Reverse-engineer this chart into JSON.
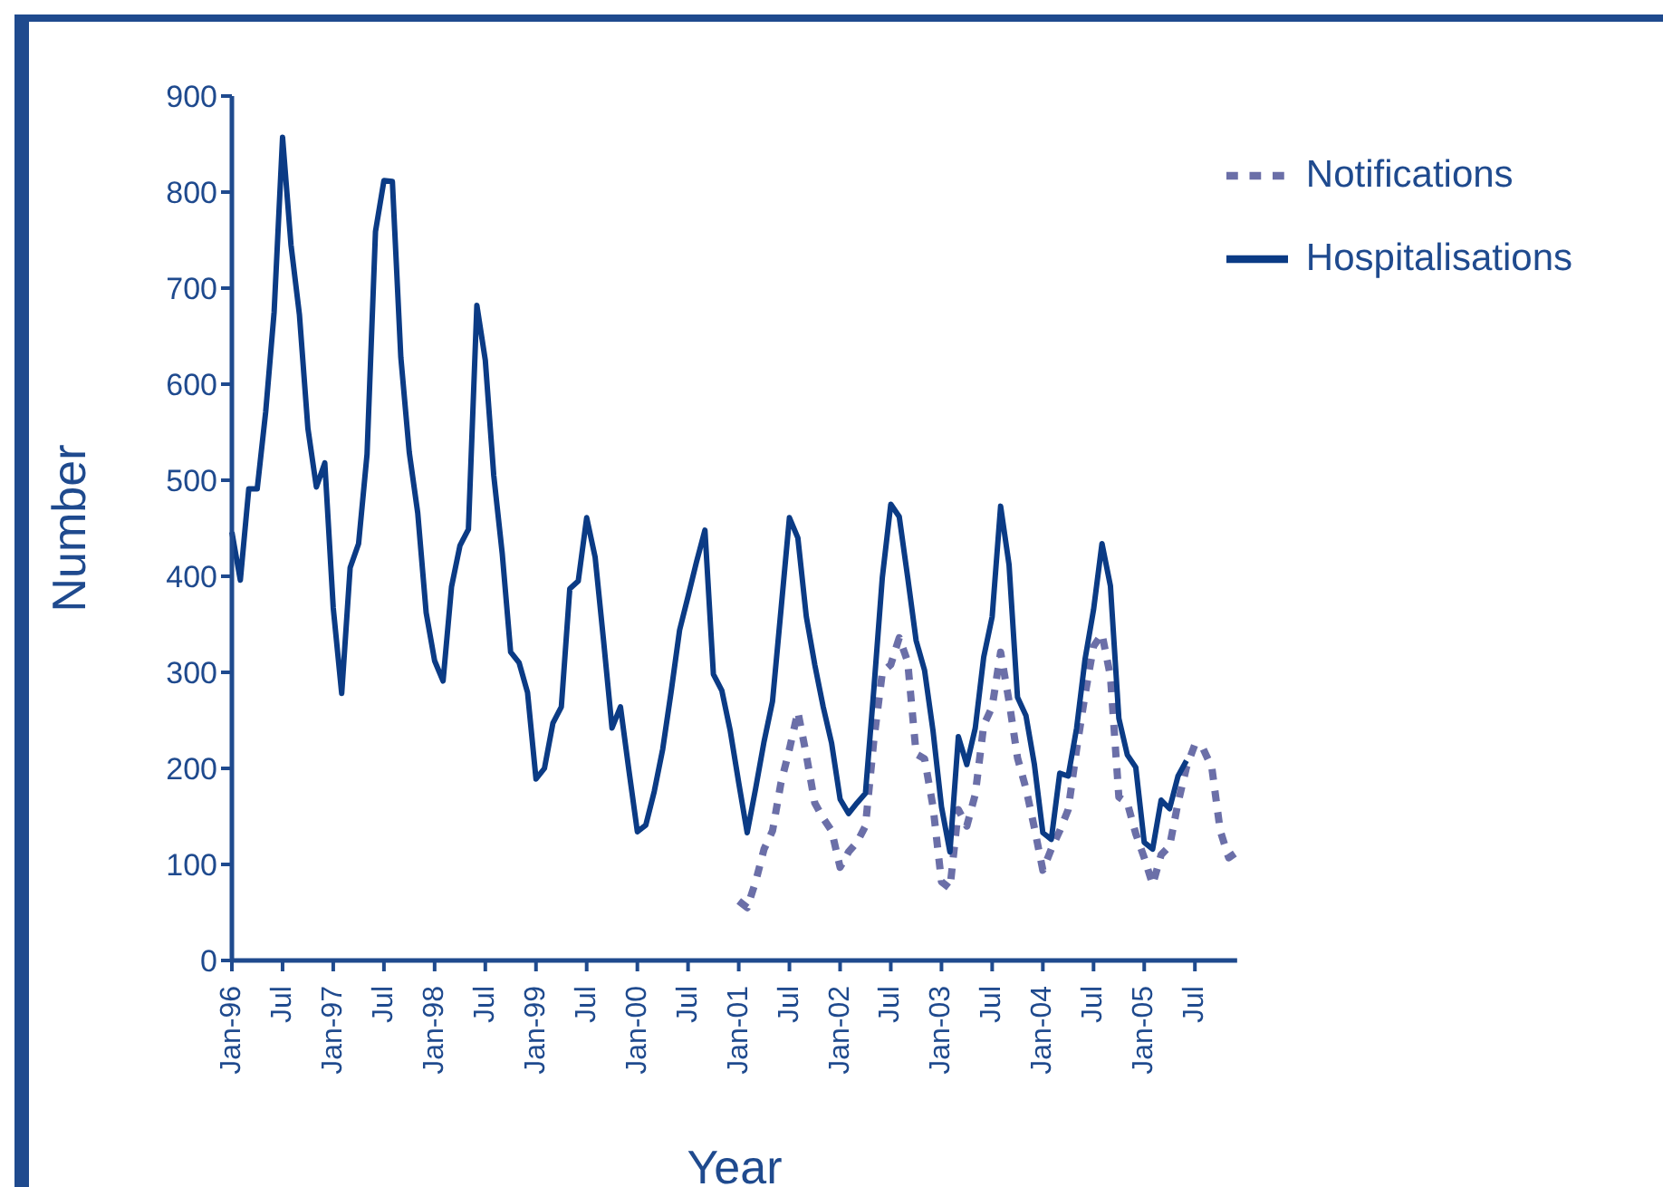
{
  "chart_data": {
    "type": "line",
    "xlabel": "Year",
    "ylabel": "Number",
    "categories": [
      "Jan-96",
      null,
      null,
      null,
      null,
      null,
      "Jul",
      null,
      null,
      null,
      null,
      null,
      "Jan-97",
      null,
      null,
      null,
      null,
      null,
      "Jul",
      null,
      null,
      null,
      null,
      null,
      "Jan-98",
      null,
      null,
      null,
      null,
      null,
      "Jul",
      null,
      null,
      null,
      null,
      null,
      "Jan-99",
      null,
      null,
      null,
      null,
      null,
      "Jul",
      null,
      null,
      null,
      null,
      null,
      "Jan-00",
      null,
      null,
      null,
      null,
      null,
      "Jul",
      null,
      null,
      null,
      null,
      null,
      "Jan-01",
      null,
      null,
      null,
      null,
      null,
      "Jul",
      null,
      null,
      null,
      null,
      null,
      "Jan-02",
      null,
      null,
      null,
      null,
      null,
      "Jul",
      null,
      null,
      null,
      null,
      null,
      "Jan-03",
      null,
      null,
      null,
      null,
      null,
      "Jul",
      null,
      null,
      null,
      null,
      null,
      "Jan-04",
      null,
      null,
      null,
      null,
      null,
      "Jul",
      null,
      null,
      null,
      null,
      null,
      "Jan-05",
      null,
      null,
      null,
      null,
      null,
      "Jul",
      null,
      null,
      null,
      null,
      null
    ],
    "series": [
      {
        "name": "Notifications",
        "color": "#6b6fa8",
        "line_style": "dotted",
        "values": [
          null,
          null,
          null,
          null,
          null,
          null,
          null,
          null,
          null,
          null,
          null,
          null,
          null,
          null,
          null,
          null,
          null,
          null,
          null,
          null,
          null,
          null,
          null,
          null,
          null,
          null,
          null,
          null,
          null,
          null,
          null,
          null,
          null,
          null,
          null,
          null,
          null,
          null,
          null,
          null,
          null,
          null,
          null,
          null,
          null,
          null,
          null,
          null,
          null,
          null,
          null,
          null,
          null,
          null,
          null,
          null,
          null,
          null,
          null,
          null,
          62,
          55,
          82,
          116,
          135,
          185,
          220,
          259,
          214,
          164,
          148,
          135,
          97,
          113,
          123,
          140,
          230,
          300,
          308,
          336,
          311,
          215,
          210,
          160,
          82,
          75,
          157,
          140,
          173,
          245,
          264,
          321,
          270,
          211,
          179,
          138,
          94,
          116,
          135,
          157,
          220,
          277,
          327,
          340,
          296,
          170,
          164,
          132,
          107,
          79,
          110,
          119,
          164,
          201,
          225,
          220,
          201,
          135,
          107,
          113
        ]
      },
      {
        "name": "Hospitalisations",
        "color": "#0b3b85",
        "line_style": "solid",
        "values": [
          446,
          396,
          491,
          491,
          571,
          675,
          857,
          745,
          672,
          554,
          493,
          518,
          367,
          278,
          409,
          434,
          527,
          759,
          812,
          811,
          628,
          529,
          466,
          362,
          312,
          291,
          389,
          432,
          449,
          682,
          625,
          505,
          424,
          321,
          310,
          279,
          189,
          200,
          247,
          264,
          387,
          395,
          461,
          420,
          333,
          242,
          264,
          198,
          134,
          141,
          176,
          220,
          280,
          344,
          379,
          415,
          448,
          298,
          281,
          239,
          185,
          133,
          179,
          228,
          270,
          365,
          461,
          440,
          358,
          308,
          264,
          226,
          168,
          153,
          164,
          174,
          283,
          399,
          475,
          462,
          399,
          333,
          302,
          239,
          160,
          113,
          233,
          204,
          242,
          316,
          358,
          473,
          412,
          274,
          255,
          204,
          133,
          126,
          195,
          192,
          242,
          314,
          365,
          434,
          390,
          252,
          214,
          201,
          123,
          116,
          167,
          158,
          192,
          208,
          null,
          null,
          null,
          null,
          null,
          null
        ]
      }
    ],
    "ylim": [
      0,
      900
    ],
    "yticks": [
      0,
      100,
      200,
      300,
      400,
      500,
      600,
      700,
      800,
      900
    ],
    "legend": "top right",
    "marker": "none"
  }
}
